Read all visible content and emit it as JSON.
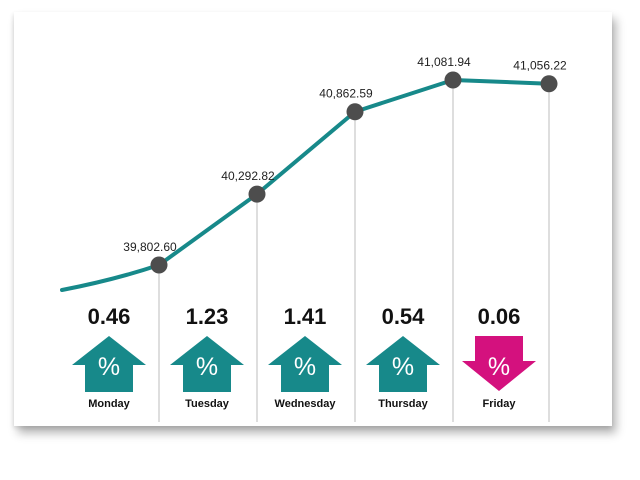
{
  "chart_data": {
    "type": "line",
    "categories": [
      "Monday",
      "Tuesday",
      "Wednesday",
      "Thursday",
      "Friday"
    ],
    "values": [
      39802.6,
      40292.82,
      40862.59,
      41081.94,
      41056.22
    ],
    "value_labels": [
      "39,802.60",
      "40,292.82",
      "40,862.59",
      "41,081.94",
      "41,056.22"
    ],
    "percent_change": [
      "0.46",
      "1.23",
      "1.41",
      "0.54",
      "0.06"
    ],
    "direction": [
      "up",
      "up",
      "up",
      "up",
      "down"
    ],
    "percent_symbol": "%",
    "title": "",
    "xlabel": "",
    "ylabel": "",
    "grid": false,
    "colors": {
      "line": "#17898a",
      "up": "#17898a",
      "down": "#d4117e",
      "marker": "#4d4d4d"
    }
  }
}
